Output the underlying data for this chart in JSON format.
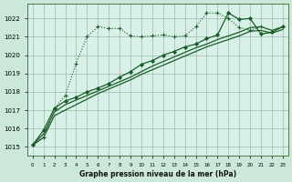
{
  "background_color": "#cce8d8",
  "plot_bg_color": "#d8f0e8",
  "grid_color": "#99bbaa",
  "line_color": "#1a5c28",
  "ylim": [
    1014.5,
    1022.8
  ],
  "xlim": [
    -0.5,
    23.5
  ],
  "yticks": [
    1015,
    1016,
    1017,
    1018,
    1019,
    1020,
    1021,
    1022
  ],
  "xticks": [
    0,
    1,
    2,
    3,
    4,
    5,
    6,
    7,
    8,
    9,
    10,
    11,
    12,
    13,
    14,
    15,
    16,
    17,
    18,
    19,
    20,
    21,
    22,
    23
  ],
  "xlabel": "Graphe pression niveau de la mer (hPa)",
  "series": [
    {
      "x": [
        0,
        1,
        2,
        3,
        4,
        5,
        6,
        7,
        8,
        9,
        10,
        11,
        12,
        13,
        14,
        15,
        16,
        17,
        18,
        19,
        20,
        21,
        22,
        23
      ],
      "y": [
        1015.1,
        1015.5,
        1017.1,
        1017.8,
        1019.55,
        1021.0,
        1021.55,
        1021.45,
        1021.45,
        1021.05,
        1021.0,
        1021.05,
        1021.1,
        1021.0,
        1021.05,
        1021.55,
        1022.3,
        1022.3,
        1022.0,
        1021.5,
        1021.35,
        1021.55,
        null,
        null
      ],
      "style": "dotted",
      "marker": "+"
    },
    {
      "x": [
        0,
        1,
        2,
        3,
        4,
        5,
        6,
        7,
        8,
        9,
        10,
        11,
        12,
        13,
        14,
        15,
        16,
        17,
        18,
        19,
        20,
        21,
        22,
        23
      ],
      "y": [
        1015.1,
        1015.9,
        1017.1,
        1017.5,
        1017.7,
        1018.0,
        1018.2,
        1018.45,
        1018.8,
        1019.1,
        1019.5,
        1019.7,
        1020.0,
        1020.2,
        1020.45,
        1020.6,
        1020.9,
        1021.1,
        1022.3,
        1021.95,
        1022.0,
        1021.15,
        1021.25,
        1021.55
      ],
      "style": "solid",
      "marker": "D"
    },
    {
      "x": [
        0,
        1,
        2,
        3,
        4,
        5,
        6,
        7,
        8,
        9,
        10,
        11,
        12,
        13,
        14,
        15,
        16,
        17,
        18,
        19,
        20,
        21,
        22,
        23
      ],
      "y": [
        1015.1,
        1015.7,
        1016.9,
        1017.3,
        1017.55,
        1017.8,
        1018.05,
        1018.3,
        1018.55,
        1018.8,
        1019.1,
        1019.4,
        1019.65,
        1019.9,
        1020.15,
        1020.4,
        1020.6,
        1020.85,
        1021.05,
        1021.25,
        1021.5,
        1021.55,
        1021.35,
        1021.55
      ],
      "style": "solid",
      "marker": null
    },
    {
      "x": [
        0,
        1,
        2,
        3,
        4,
        5,
        6,
        7,
        8,
        9,
        10,
        11,
        12,
        13,
        14,
        15,
        16,
        17,
        18,
        19,
        20,
        21,
        22,
        23
      ],
      "y": [
        1015.1,
        1015.5,
        1016.7,
        1017.0,
        1017.3,
        1017.6,
        1017.9,
        1018.15,
        1018.4,
        1018.65,
        1018.95,
        1019.2,
        1019.45,
        1019.7,
        1019.95,
        1020.2,
        1020.45,
        1020.65,
        1020.85,
        1021.05,
        1021.3,
        1021.35,
        1021.2,
        1021.4
      ],
      "style": "solid",
      "marker": null
    }
  ]
}
